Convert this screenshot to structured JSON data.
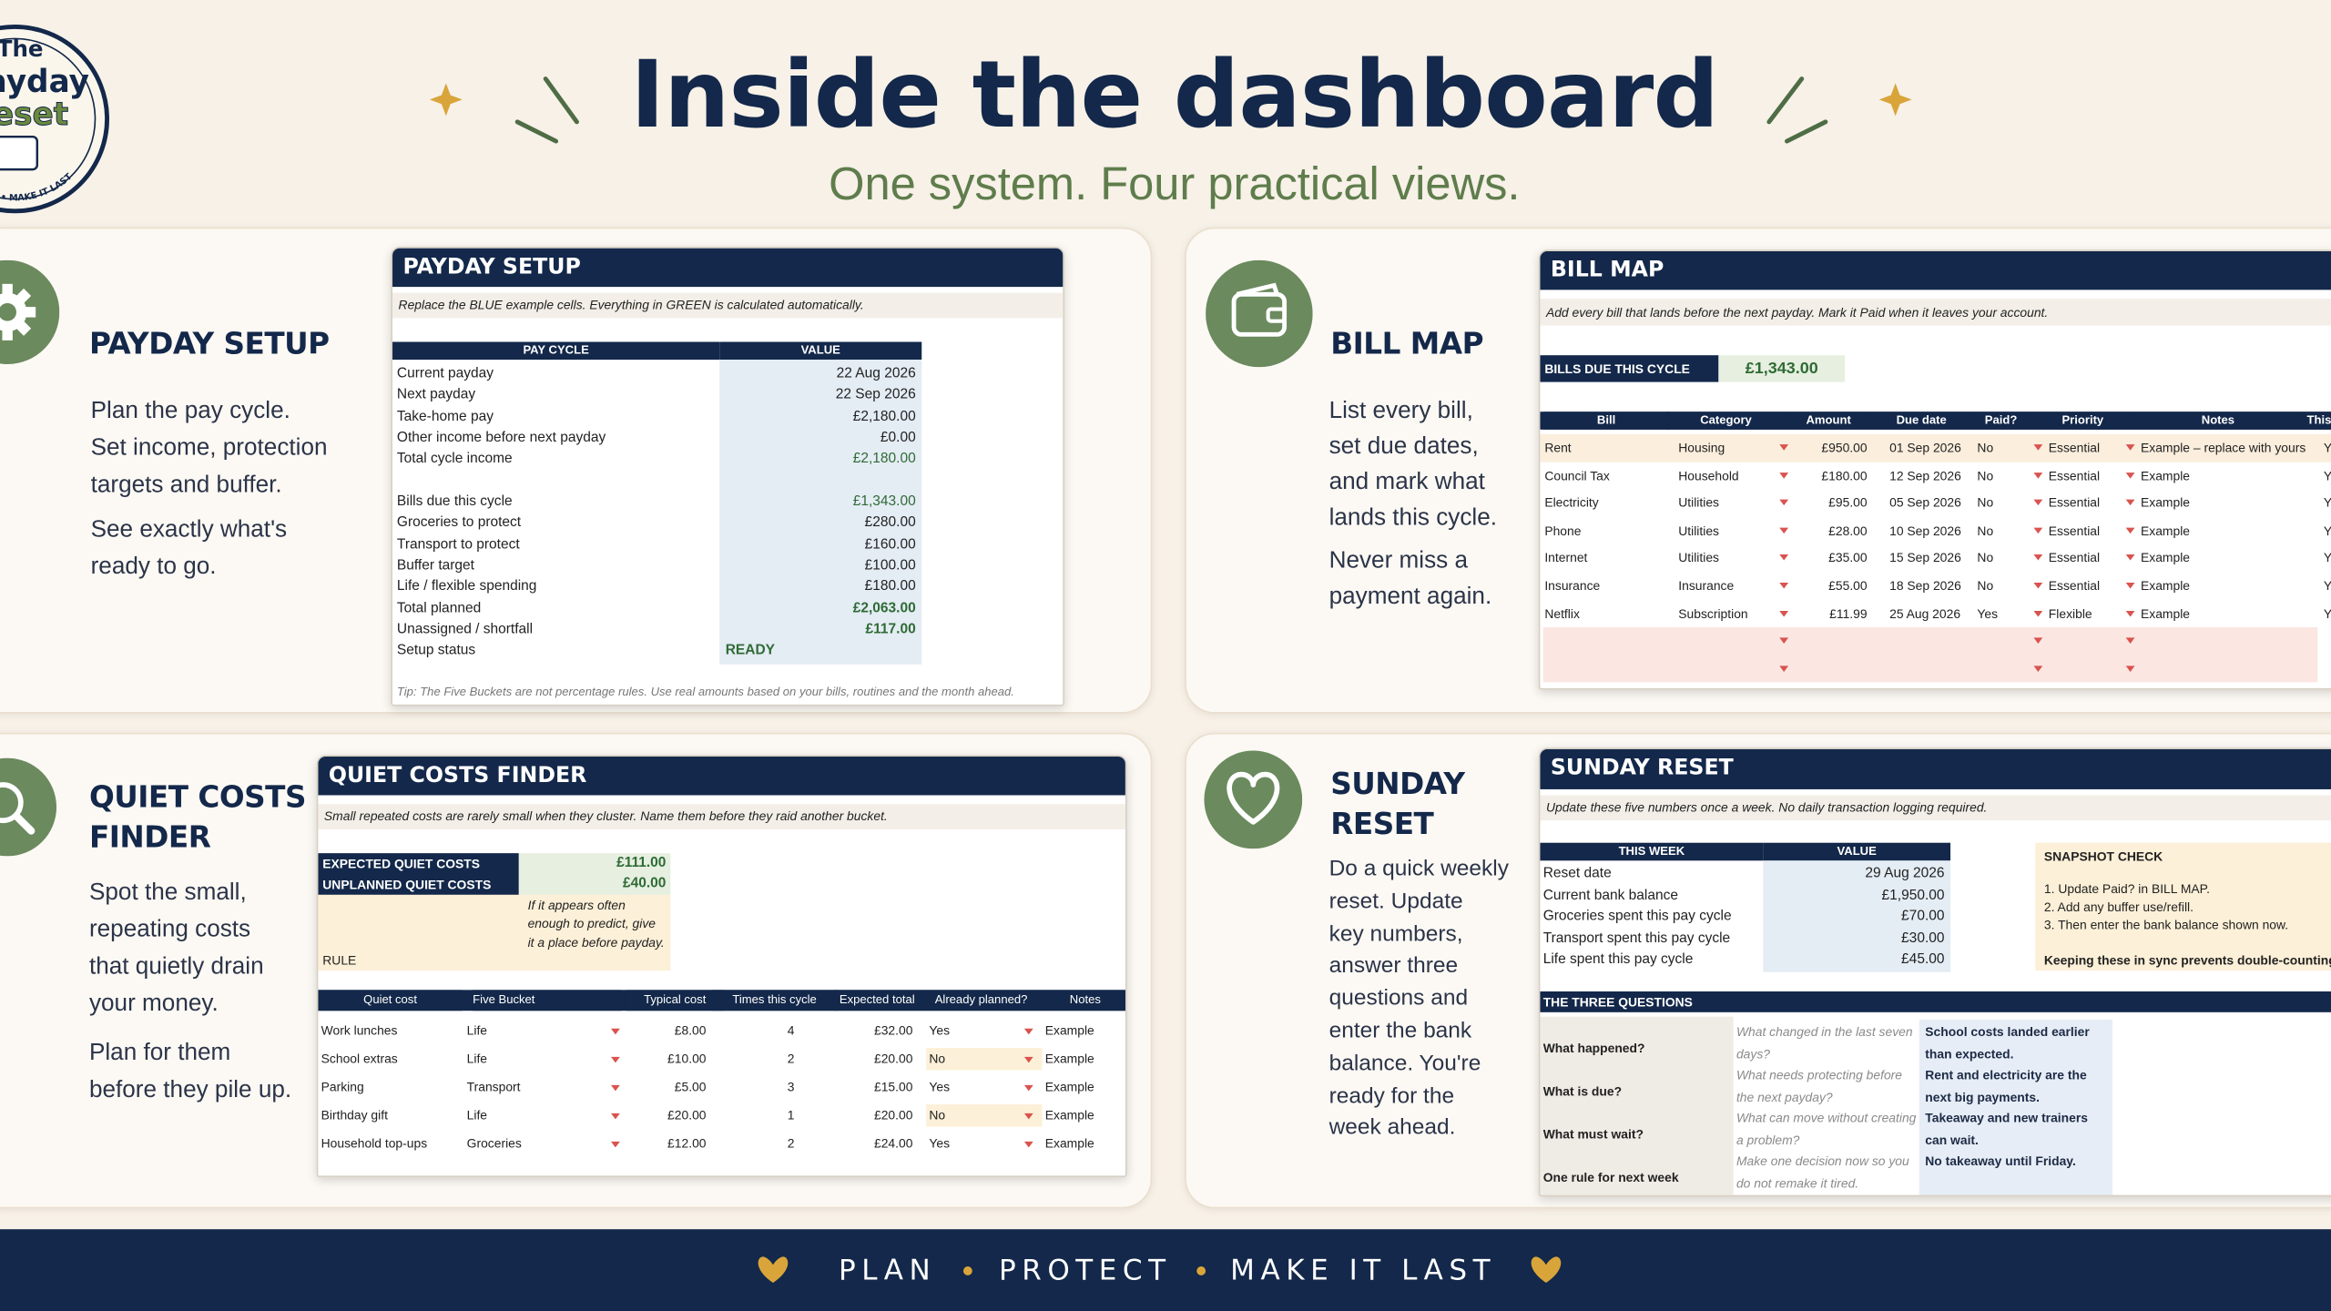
{
  "header": {
    "logo": {
      "line1": "The",
      "line2": "Payday",
      "line3": "Reset",
      "tagline": "PROTECT • MAKE IT LAST"
    },
    "title": "Inside the dashboard",
    "subtitle": "One system. Four practical views."
  },
  "panels": {
    "payday_setup": {
      "heading": "PAYDAY SETUP",
      "description": [
        [
          "Plan the pay cycle.",
          "Set income, protection",
          "targets and buffer."
        ],
        [
          "See exactly what's",
          "ready to go."
        ]
      ],
      "sheet": {
        "title": "PAYDAY SETUP",
        "note": "Replace the BLUE example cells. Everything in GREEN is calculated automatically.",
        "columns": [
          "PAY CYCLE",
          "VALUE"
        ],
        "rows": [
          [
            "Current payday",
            "22 Aug 2026"
          ],
          [
            "Next payday",
            "22 Sep 2026"
          ],
          [
            "Take-home pay",
            "£2,180.00"
          ],
          [
            "Other income before next payday",
            "£0.00"
          ],
          [
            "Total cycle income",
            "£2,180.00"
          ],
          [
            "Bills due this cycle",
            "£1,343.00"
          ],
          [
            "Groceries to protect",
            "£280.00"
          ],
          [
            "Transport to protect",
            "£160.00"
          ],
          [
            "Buffer target",
            "£100.00"
          ],
          [
            "Life / flexible spending",
            "£180.00"
          ],
          [
            "Total planned",
            "£2,063.00"
          ],
          [
            "Unassigned / shortfall",
            "£117.00"
          ],
          [
            "Setup status",
            "READY"
          ]
        ],
        "tip": "Tip: The Five Buckets are not percentage rules. Use real amounts based on your bills, routines and the month ahead."
      }
    },
    "bill_map": {
      "heading": "BILL MAP",
      "description": [
        [
          "List every bill,",
          "set due dates,",
          "and mark what",
          "lands this cycle."
        ],
        [
          "Never miss a",
          "payment again."
        ]
      ],
      "sheet": {
        "title": "BILL MAP",
        "note": "Add every bill that lands before the next payday. Mark it Paid when it leaves your account.",
        "summary": {
          "label": "BILLS DUE THIS CYCLE",
          "value": "£1,343.00"
        },
        "columns": [
          "Bill",
          "Category",
          "Amount",
          "Due date",
          "Paid?",
          "Priority",
          "Notes",
          "This pay"
        ],
        "rows": [
          [
            "Rent",
            "Housing",
            "£950.00",
            "01 Sep 2026",
            "No",
            "Essential",
            "Example – replace with yours",
            "Y"
          ],
          [
            "Council Tax",
            "Household",
            "£180.00",
            "12 Sep 2026",
            "No",
            "Essential",
            "Example",
            "Y"
          ],
          [
            "Electricity",
            "Utilities",
            "£95.00",
            "05 Sep 2026",
            "No",
            "Essential",
            "Example",
            "Y"
          ],
          [
            "Phone",
            "Utilities",
            "£28.00",
            "10 Sep 2026",
            "No",
            "Essential",
            "Example",
            "Y"
          ],
          [
            "Internet",
            "Utilities",
            "£35.00",
            "15 Sep 2026",
            "No",
            "Essential",
            "Example",
            "Y"
          ],
          [
            "Insurance",
            "Insurance",
            "£55.00",
            "18 Sep 2026",
            "No",
            "Essential",
            "Example",
            "Y"
          ],
          [
            "Netflix",
            "Subscription",
            "£11.99",
            "25 Aug 2026",
            "Yes",
            "Flexible",
            "Example",
            "Y"
          ]
        ]
      }
    },
    "quiet_costs": {
      "heading": "QUIET COSTS FINDER",
      "description": [
        [
          "Spot the small,",
          "repeating costs",
          "that quietly drain",
          "your money."
        ],
        [
          "Plan for them",
          "before they pile up."
        ]
      ],
      "sheet": {
        "title": "QUIET COSTS FINDER",
        "note": "Small repeated costs are rarely small when they cluster. Name them before they raid another bucket.",
        "summary": [
          [
            "EXPECTED QUIET COSTS",
            "£111.00"
          ],
          [
            "UNPLANNED QUIET COSTS",
            "£40.00"
          ]
        ],
        "rule_label": "RULE",
        "rule": "If it appears often enough to predict, give it a place before payday.",
        "columns": [
          "Quiet cost",
          "Five Bucket",
          "Typical cost",
          "Times this cycle",
          "Expected total",
          "Already planned?",
          "Notes"
        ],
        "rows": [
          [
            "Work lunches",
            "Life",
            "£8.00",
            "4",
            "£32.00",
            "Yes",
            "Example"
          ],
          [
            "School extras",
            "Life",
            "£10.00",
            "2",
            "£20.00",
            "No",
            "Example"
          ],
          [
            "Parking",
            "Transport",
            "£5.00",
            "3",
            "£15.00",
            "Yes",
            "Example"
          ],
          [
            "Birthday gift",
            "Life",
            "£20.00",
            "1",
            "£20.00",
            "No",
            "Example"
          ],
          [
            "Household top-ups",
            "Groceries",
            "£12.00",
            "2",
            "£24.00",
            "Yes",
            "Example"
          ]
        ]
      }
    },
    "sunday_reset": {
      "heading": "SUNDAY RESET",
      "description": [
        [
          "Do a quick weekly",
          "reset. Update",
          "key numbers,",
          "answer three",
          "questions and",
          "enter the bank",
          "balance. You're",
          "ready for the",
          "week ahead."
        ]
      ],
      "sheet": {
        "title": "SUNDAY RESET",
        "note": "Update these five numbers once a week. No daily transaction logging required.",
        "columns": [
          "THIS WEEK",
          "VALUE"
        ],
        "rows": [
          [
            "Reset date",
            "29 Aug 2026"
          ],
          [
            "Current bank balance",
            "£1,950.00"
          ],
          [
            "Groceries spent this pay cycle",
            "£70.00"
          ],
          [
            "Transport spent this pay cycle",
            "£30.00"
          ],
          [
            "Life spent this pay cycle",
            "£45.00"
          ]
        ],
        "snapshot": {
          "title": "SNAPSHOT CHECK",
          "items": [
            "1. Update Paid? in BILL MAP.",
            "2. Add any buffer use/refill.",
            "3. Then enter the bank balance shown now."
          ],
          "footnote": "Keeping these in sync prevents double-counting."
        },
        "questions_title": "THE THREE QUESTIONS",
        "questions": [
          [
            "What happened?",
            "What changed in the last seven days?",
            "School costs landed earlier than expected."
          ],
          [
            "What is due?",
            "What needs protecting before the next payday?",
            "Rent and electricity are the next big payments."
          ],
          [
            "What must wait?",
            "What can move without creating a problem?",
            "Takeaway and new trainers can wait."
          ],
          [
            "One rule for next week",
            "Make one decision now so you do not remake it tired.",
            "No takeaway until Friday."
          ]
        ]
      }
    }
  },
  "footer": {
    "items": [
      "PLAN",
      "PROTECT",
      "MAKE IT LAST"
    ]
  }
}
